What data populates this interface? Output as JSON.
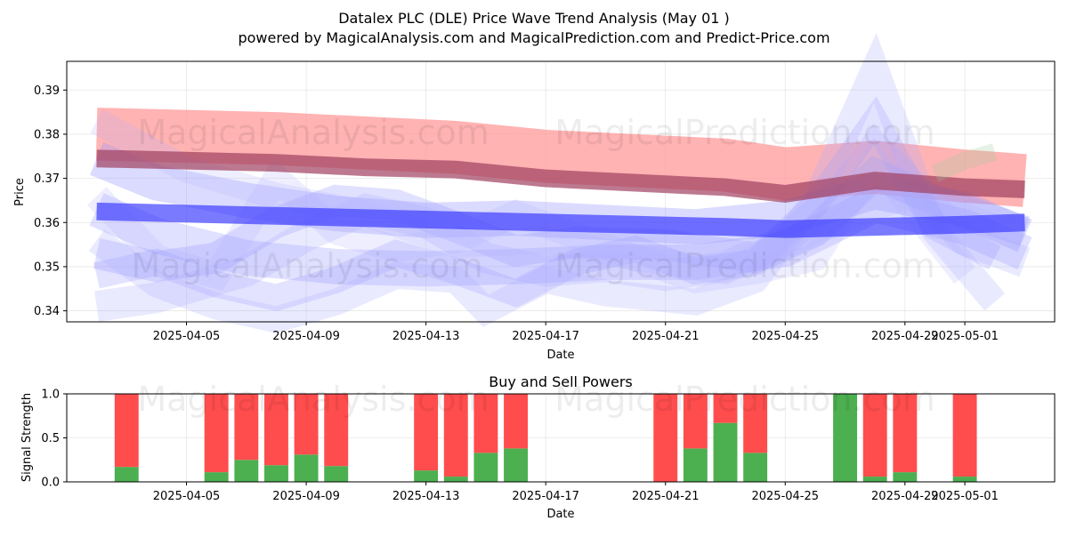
{
  "title_line1": "Datalex PLC (DLE) Price Wave Trend Analysis (May 01 )",
  "title_line2": "powered by MagicalAnalysis.com and MagicalPrediction.com and Predict-Price.com",
  "watermarks": [
    "MagicalAnalysis.com",
    "MagicalPrediction.com"
  ],
  "chart_data": [
    {
      "type": "area",
      "title": "",
      "xlabel": "Date",
      "ylabel": "Price",
      "xlim": [
        "2025-04-01",
        "2025-05-04"
      ],
      "ylim": [
        0.3375,
        0.3965
      ],
      "x_ticks": [
        "2025-04-05",
        "2025-04-09",
        "2025-04-13",
        "2025-04-17",
        "2025-04-21",
        "2025-04-25",
        "2025-04-29",
        "2025-05-01"
      ],
      "y_ticks": [
        0.34,
        0.35,
        0.36,
        0.37,
        0.38,
        0.39
      ],
      "grid": true,
      "series": [
        {
          "color": "#ff9999",
          "width": 0.012,
          "opacity": 0.75,
          "x": [
            "2025-04-02",
            "2025-04-05",
            "2025-04-08",
            "2025-04-11",
            "2025-04-14",
            "2025-04-17",
            "2025-04-20",
            "2025-04-23",
            "2025-04-25",
            "2025-04-28",
            "2025-05-01",
            "2025-05-03"
          ],
          "y": [
            0.38,
            0.3795,
            0.379,
            0.378,
            0.377,
            0.375,
            0.374,
            0.373,
            0.371,
            0.3725,
            0.3705,
            0.3695
          ]
        },
        {
          "color": "#a04060",
          "width": 0.004,
          "opacity": 0.7,
          "x": [
            "2025-04-02",
            "2025-04-05",
            "2025-04-08",
            "2025-04-11",
            "2025-04-14",
            "2025-04-17",
            "2025-04-20",
            "2025-04-23",
            "2025-04-25",
            "2025-04-28",
            "2025-05-01",
            "2025-05-03"
          ],
          "y": [
            0.3745,
            0.374,
            0.3735,
            0.3725,
            0.372,
            0.37,
            0.369,
            0.368,
            0.3665,
            0.3695,
            0.368,
            0.3675
          ]
        },
        {
          "color": "#3333ff",
          "width": 0.004,
          "opacity": 0.65,
          "x": [
            "2025-04-02",
            "2025-04-05",
            "2025-04-08",
            "2025-04-11",
            "2025-04-14",
            "2025-04-17",
            "2025-04-20",
            "2025-04-23",
            "2025-04-25",
            "2025-04-28",
            "2025-05-01",
            "2025-05-03"
          ],
          "y": [
            0.3625,
            0.362,
            0.3615,
            0.361,
            0.3605,
            0.36,
            0.3595,
            0.359,
            0.3585,
            0.359,
            0.3595,
            0.36
          ]
        },
        {
          "color": "#9999ff",
          "width": 0.008,
          "opacity": 0.35,
          "x": [
            "2025-04-02",
            "2025-04-04",
            "2025-04-07",
            "2025-04-10",
            "2025-04-13",
            "2025-04-16",
            "2025-04-19",
            "2025-04-22",
            "2025-04-25",
            "2025-04-28",
            "2025-05-01",
            "2025-05-03"
          ],
          "y": [
            0.3745,
            0.369,
            0.365,
            0.362,
            0.3605,
            0.361,
            0.36,
            0.359,
            0.361,
            0.367,
            0.363,
            0.357
          ]
        },
        {
          "color": "#9999ff",
          "width": 0.008,
          "opacity": 0.3,
          "x": [
            "2025-04-02",
            "2025-04-04",
            "2025-04-07",
            "2025-04-10",
            "2025-04-13",
            "2025-04-16",
            "2025-04-19",
            "2025-04-22",
            "2025-04-25",
            "2025-04-28",
            "2025-05-01",
            "2025-05-03"
          ],
          "y": [
            0.363,
            0.357,
            0.352,
            0.35,
            0.3495,
            0.35,
            0.351,
            0.351,
            0.354,
            0.364,
            0.359,
            0.353
          ]
        },
        {
          "color": "#9999ff",
          "width": 0.007,
          "opacity": 0.3,
          "x": [
            "2025-04-02",
            "2025-04-04",
            "2025-04-06",
            "2025-04-08",
            "2025-04-10",
            "2025-04-12",
            "2025-04-14",
            "2025-04-16",
            "2025-04-18",
            "2025-04-21",
            "2025-04-24",
            "2025-04-26",
            "2025-04-28",
            "2025-04-30",
            "2025-05-03"
          ],
          "y": [
            0.353,
            0.35,
            0.352,
            0.36,
            0.365,
            0.364,
            0.359,
            0.3535,
            0.3555,
            0.355,
            0.352,
            0.358,
            0.371,
            0.365,
            0.358
          ]
        },
        {
          "color": "#9999ff",
          "width": 0.006,
          "opacity": 0.28,
          "x": [
            "2025-04-02",
            "2025-04-04",
            "2025-04-06",
            "2025-04-08",
            "2025-04-10",
            "2025-04-12",
            "2025-04-14",
            "2025-04-16",
            "2025-04-18",
            "2025-04-20",
            "2025-04-22",
            "2025-04-24",
            "2025-04-26",
            "2025-04-28",
            "2025-04-30",
            "2025-05-02"
          ],
          "y": [
            0.348,
            0.351,
            0.346,
            0.343,
            0.347,
            0.353,
            0.349,
            0.344,
            0.351,
            0.354,
            0.349,
            0.351,
            0.364,
            0.383,
            0.359,
            0.352
          ]
        },
        {
          "color": "#aaaaff",
          "width": 0.006,
          "opacity": 0.25,
          "x": [
            "2025-04-02",
            "2025-04-04",
            "2025-04-06",
            "2025-04-08",
            "2025-04-10",
            "2025-04-12",
            "2025-04-14",
            "2025-04-15",
            "2025-04-17",
            "2025-04-19",
            "2025-04-22",
            "2025-04-24",
            "2025-04-26",
            "2025-04-28",
            "2025-04-30",
            "2025-05-02"
          ],
          "y": [
            0.356,
            0.346,
            0.341,
            0.338,
            0.342,
            0.348,
            0.347,
            0.34,
            0.347,
            0.344,
            0.342,
            0.347,
            0.365,
            0.395,
            0.358,
            0.342
          ]
        },
        {
          "color": "#aaaaff",
          "width": 0.007,
          "opacity": 0.25,
          "x": [
            "2025-04-02",
            "2025-04-04",
            "2025-04-07",
            "2025-04-09",
            "2025-04-11",
            "2025-04-13",
            "2025-04-15",
            "2025-04-17",
            "2025-04-19",
            "2025-04-21",
            "2025-04-23",
            "2025-04-25",
            "2025-04-27",
            "2025-04-28",
            "2025-05-01",
            "2025-05-03"
          ],
          "y": [
            0.341,
            0.343,
            0.349,
            0.357,
            0.363,
            0.36,
            0.352,
            0.349,
            0.35,
            0.348,
            0.35,
            0.356,
            0.368,
            0.377,
            0.356,
            0.351
          ]
        },
        {
          "color": "#b0b0ff",
          "width": 0.006,
          "opacity": 0.22,
          "x": [
            "2025-04-02",
            "2025-04-05",
            "2025-04-08",
            "2025-04-11",
            "2025-04-14",
            "2025-04-17",
            "2025-04-20",
            "2025-04-23",
            "2025-04-26",
            "2025-04-29",
            "2025-05-02"
          ],
          "y": [
            0.383,
            0.372,
            0.366,
            0.362,
            0.355,
            0.356,
            0.352,
            0.349,
            0.358,
            0.366,
            0.359
          ]
        },
        {
          "color": "#b0b0ff",
          "width": 0.006,
          "opacity": 0.22,
          "x": [
            "2025-04-02",
            "2025-04-04",
            "2025-04-06",
            "2025-04-08",
            "2025-04-10",
            "2025-04-12",
            "2025-04-14",
            "2025-04-16",
            "2025-04-18",
            "2025-04-20",
            "2025-04-22",
            "2025-04-24",
            "2025-04-26",
            "2025-04-28",
            "2025-05-01"
          ],
          "y": [
            0.366,
            0.352,
            0.348,
            0.37,
            0.358,
            0.354,
            0.356,
            0.362,
            0.357,
            0.352,
            0.347,
            0.349,
            0.352,
            0.374,
            0.348
          ]
        },
        {
          "color": "#99cc99",
          "width": 0.004,
          "opacity": 0.25,
          "x": [
            "2025-04-30",
            "2025-05-01",
            "2025-05-02"
          ],
          "y": [
            0.371,
            0.374,
            0.376
          ]
        }
      ]
    },
    {
      "type": "bar",
      "title": "Buy and Sell Powers",
      "xlabel": "Date",
      "ylabel": "Signal Strength",
      "xlim": [
        "2025-04-01",
        "2025-05-04"
      ],
      "ylim": [
        0,
        1.0
      ],
      "x_ticks": [
        "2025-04-05",
        "2025-04-09",
        "2025-04-13",
        "2025-04-17",
        "2025-04-21",
        "2025-04-25",
        "2025-04-29",
        "2025-05-01"
      ],
      "y_ticks": [
        "0.0",
        "0.5",
        "1.0"
      ],
      "grid": true,
      "stacked": true,
      "colors": {
        "buy": "#4caf50",
        "sell": "#ff4d4d"
      },
      "dates": [
        "2025-04-03",
        "2025-04-06",
        "2025-04-07",
        "2025-04-08",
        "2025-04-09",
        "2025-04-10",
        "2025-04-13",
        "2025-04-14",
        "2025-04-15",
        "2025-04-16",
        "2025-04-21",
        "2025-04-22",
        "2025-04-23",
        "2025-04-24",
        "2025-04-27",
        "2025-04-28",
        "2025-04-29",
        "2025-05-01"
      ],
      "buy": [
        0.17,
        0.11,
        0.25,
        0.19,
        0.31,
        0.18,
        0.13,
        0.06,
        0.33,
        0.38,
        0.0,
        0.38,
        0.67,
        0.33,
        1.0,
        0.06,
        0.11,
        0.06
      ],
      "sell": [
        0.83,
        0.89,
        0.75,
        0.81,
        0.69,
        0.82,
        0.87,
        0.94,
        0.67,
        0.62,
        1.0,
        0.62,
        0.33,
        0.67,
        0.0,
        0.94,
        0.89,
        0.94
      ]
    }
  ]
}
